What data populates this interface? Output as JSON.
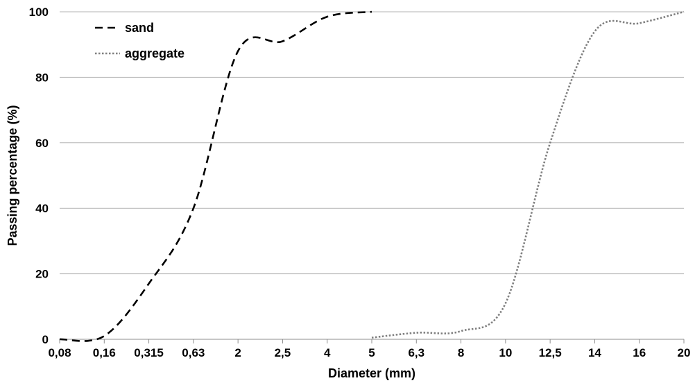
{
  "chart_data": {
    "type": "line",
    "title": "",
    "xlabel": "Diameter (mm)",
    "ylabel": "Passing percentage (%)",
    "categories": [
      "0,08",
      "0,16",
      "0,315",
      "0,63",
      "2",
      "2,5",
      "4",
      "5",
      "6,3",
      "8",
      "10",
      "12,5",
      "14",
      "16",
      "20"
    ],
    "ylim": [
      0,
      100
    ],
    "yticks": [
      0,
      20,
      40,
      60,
      80,
      100
    ],
    "grid": "horizontal",
    "legend_position": "top-left",
    "series": [
      {
        "name": "sand",
        "style": "dashed",
        "color": "#000000",
        "points": [
          {
            "x": "0,08",
            "y": 0
          },
          {
            "x": "0,16",
            "y": 1
          },
          {
            "x": "0,315",
            "y": 17
          },
          {
            "x": "0,63",
            "y": 40
          },
          {
            "x": "2",
            "y": 88
          },
          {
            "x": "2,5",
            "y": 91
          },
          {
            "x": "4",
            "y": 98.5
          },
          {
            "x": "5",
            "y": 100
          }
        ]
      },
      {
        "name": "aggregate",
        "style": "dotted",
        "color": "#7f7f7f",
        "points": [
          {
            "x": "5",
            "y": 0.5
          },
          {
            "x": "6,3",
            "y": 2
          },
          {
            "x": "8",
            "y": 2.5
          },
          {
            "x": "10",
            "y": 11
          },
          {
            "x": "12,5",
            "y": 60
          },
          {
            "x": "14",
            "y": 94
          },
          {
            "x": "16",
            "y": 96.5
          },
          {
            "x": "20",
            "y": 100
          }
        ]
      }
    ]
  }
}
